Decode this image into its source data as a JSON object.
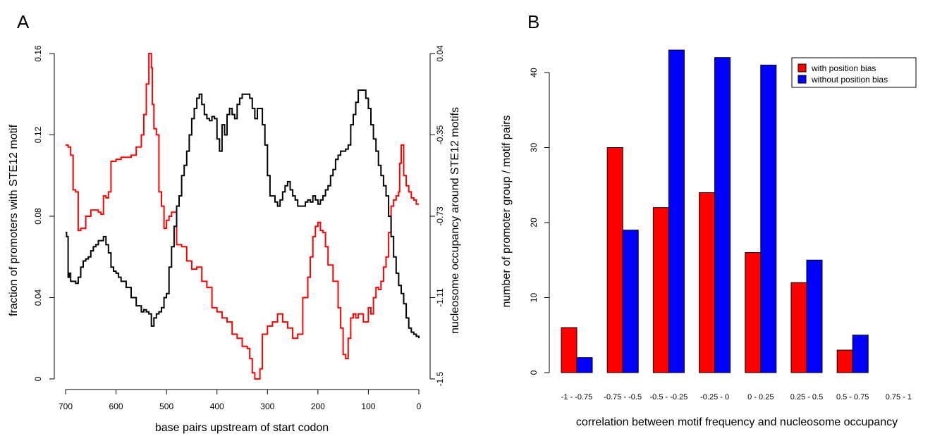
{
  "chart_data": [
    {
      "panel": "A",
      "type": "line",
      "xlabel": "base pairs upstream of start codon",
      "ylabel_left": "fraction of promoters with STE12 motif",
      "ylabel_right": "nucleosome occupancy around STE12 motifs",
      "xlim": [
        700,
        0
      ],
      "x_ticks": [
        "700",
        "600",
        "500",
        "400",
        "300",
        "200",
        "100",
        "0"
      ],
      "ylim_left": [
        0,
        0.16
      ],
      "y_ticks_left": [
        "0",
        "0.04",
        "0.08",
        "0.12",
        "0.16"
      ],
      "ylim_right": [
        -1.5,
        0.04
      ],
      "y_ticks_right": [
        "-1.5",
        "-1.11",
        "-0.73",
        "-0.35",
        "0.04"
      ],
      "grid": false,
      "series": [
        {
          "axis": "left",
          "color": "#ff0000",
          "x": [
            700,
            695,
            690,
            685,
            680,
            675,
            670,
            660,
            650,
            640,
            635,
            630,
            625,
            620,
            615,
            610,
            600,
            590,
            580,
            570,
            560,
            550,
            545,
            540,
            535,
            530,
            528,
            525,
            520,
            515,
            510,
            505,
            500,
            495,
            490,
            480,
            470,
            460,
            450,
            440,
            430,
            420,
            410,
            400,
            390,
            380,
            370,
            360,
            350,
            340,
            335,
            330,
            325,
            320,
            315,
            310,
            300,
            290,
            280,
            270,
            260,
            250,
            240,
            230,
            220,
            215,
            210,
            205,
            200,
            195,
            190,
            185,
            180,
            170,
            160,
            155,
            150,
            145,
            140,
            135,
            130,
            125,
            120,
            110,
            100,
            95,
            90,
            85,
            80,
            75,
            70,
            65,
            60,
            55,
            50,
            45,
            40,
            38,
            35,
            30,
            25,
            20,
            15,
            10,
            5,
            0
          ],
          "values": [
            0.115,
            0.114,
            0.11,
            0.093,
            0.092,
            0.073,
            0.074,
            0.08,
            0.083,
            0.083,
            0.082,
            0.081,
            0.09,
            0.089,
            0.092,
            0.107,
            0.108,
            0.109,
            0.109,
            0.11,
            0.114,
            0.12,
            0.13,
            0.145,
            0.16,
            0.153,
            0.135,
            0.123,
            0.12,
            0.092,
            0.085,
            0.074,
            0.078,
            0.08,
            0.082,
            0.066,
            0.065,
            0.058,
            0.054,
            0.055,
            0.048,
            0.045,
            0.035,
            0.033,
            0.03,
            0.028,
            0.022,
            0.02,
            0.016,
            0.015,
            0.01,
            0.003,
            0.0,
            0.0,
            0.005,
            0.022,
            0.026,
            0.028,
            0.032,
            0.028,
            0.025,
            0.02,
            0.022,
            0.04,
            0.05,
            0.06,
            0.07,
            0.075,
            0.077,
            0.073,
            0.072,
            0.065,
            0.056,
            0.048,
            0.035,
            0.025,
            0.012,
            0.01,
            0.02,
            0.03,
            0.032,
            0.03,
            0.032,
            0.028,
            0.035,
            0.032,
            0.04,
            0.045,
            0.044,
            0.048,
            0.055,
            0.06,
            0.072,
            0.085,
            0.088,
            0.09,
            0.092,
            0.106,
            0.115,
            0.1,
            0.095,
            0.092,
            0.089,
            0.088,
            0.086,
            0.086
          ]
        },
        {
          "axis": "left",
          "color": "#000000",
          "x": [
            700,
            698,
            695,
            693,
            690,
            685,
            680,
            675,
            670,
            665,
            660,
            655,
            650,
            645,
            640,
            635,
            630,
            625,
            620,
            615,
            610,
            605,
            600,
            595,
            590,
            580,
            570,
            560,
            550,
            545,
            540,
            535,
            530,
            527,
            525,
            520,
            515,
            510,
            505,
            500,
            495,
            490,
            485,
            480,
            475,
            470,
            465,
            460,
            455,
            450,
            445,
            440,
            435,
            430,
            425,
            420,
            415,
            410,
            405,
            400,
            395,
            390,
            385,
            380,
            375,
            370,
            365,
            360,
            355,
            350,
            345,
            340,
            335,
            330,
            325,
            320,
            315,
            310,
            305,
            300,
            295,
            290,
            285,
            280,
            275,
            270,
            265,
            260,
            255,
            250,
            245,
            240,
            235,
            230,
            225,
            220,
            215,
            210,
            205,
            200,
            195,
            190,
            185,
            180,
            175,
            170,
            165,
            160,
            155,
            150,
            145,
            140,
            135,
            130,
            125,
            120,
            115,
            110,
            105,
            100,
            95,
            90,
            85,
            80,
            75,
            70,
            65,
            60,
            55,
            50,
            45,
            40,
            35,
            30,
            25,
            20,
            15,
            10,
            5,
            0
          ],
          "values": [
            0.072,
            0.07,
            0.05,
            0.052,
            0.048,
            0.048,
            0.047,
            0.05,
            0.055,
            0.058,
            0.059,
            0.06,
            0.063,
            0.065,
            0.066,
            0.068,
            0.068,
            0.07,
            0.066,
            0.062,
            0.055,
            0.053,
            0.052,
            0.05,
            0.048,
            0.045,
            0.04,
            0.036,
            0.033,
            0.034,
            0.033,
            0.032,
            0.026,
            0.026,
            0.03,
            0.032,
            0.033,
            0.035,
            0.04,
            0.042,
            0.055,
            0.065,
            0.075,
            0.085,
            0.09,
            0.1,
            0.105,
            0.112,
            0.12,
            0.128,
            0.133,
            0.138,
            0.14,
            0.135,
            0.13,
            0.128,
            0.127,
            0.129,
            0.128,
            0.118,
            0.112,
            0.125,
            0.12,
            0.13,
            0.133,
            0.13,
            0.128,
            0.135,
            0.138,
            0.14,
            0.14,
            0.14,
            0.138,
            0.133,
            0.128,
            0.133,
            0.133,
            0.125,
            0.115,
            0.1,
            0.09,
            0.09,
            0.087,
            0.085,
            0.088,
            0.092,
            0.095,
            0.097,
            0.093,
            0.09,
            0.088,
            0.085,
            0.085,
            0.085,
            0.087,
            0.088,
            0.087,
            0.09,
            0.088,
            0.086,
            0.088,
            0.09,
            0.093,
            0.095,
            0.1,
            0.103,
            0.108,
            0.11,
            0.112,
            0.112,
            0.113,
            0.115,
            0.125,
            0.13,
            0.136,
            0.142,
            0.142,
            0.142,
            0.138,
            0.133,
            0.125,
            0.118,
            0.112,
            0.105,
            0.1,
            0.095,
            0.09,
            0.08,
            0.07,
            0.06,
            0.052,
            0.046,
            0.042,
            0.037,
            0.03,
            0.025,
            0.023,
            0.022,
            0.021,
            0.02
          ]
        }
      ]
    },
    {
      "panel": "B",
      "type": "bar",
      "xlabel": "correlation between motif frequency and nucleosome occupancy",
      "ylabel": "number of promoter group / motif pairs",
      "categories": [
        "-1 - -0.75",
        "-0.75 - -0.5",
        "-0.5 - -0.25",
        "-0.25 - 0",
        "0 - 0.25",
        "0.25 - 0.5",
        "0.5 - 0.75",
        "0.75 - 1"
      ],
      "ylim": [
        0,
        44
      ],
      "y_ticks": [
        "0",
        "10",
        "20",
        "30",
        "40"
      ],
      "grid": false,
      "legend_position": "top-right",
      "series": [
        {
          "name": "with position bias",
          "color": "#ff0000",
          "values": [
            6,
            30,
            22,
            24,
            16,
            12,
            3,
            0
          ]
        },
        {
          "name": "without position bias",
          "color": "#0000ff",
          "values": [
            2,
            19,
            43,
            42,
            41,
            15,
            5,
            0
          ]
        }
      ]
    }
  ]
}
